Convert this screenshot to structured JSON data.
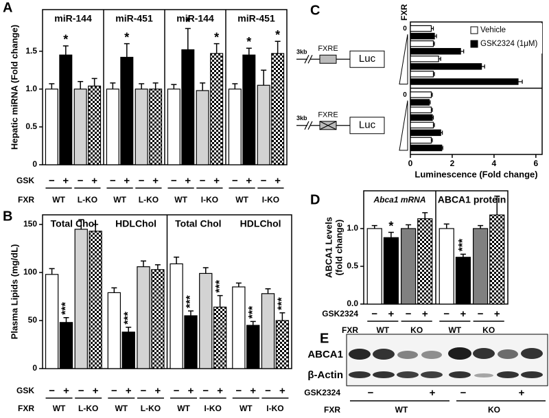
{
  "panel_labels": [
    "A",
    "B",
    "C",
    "D",
    "E"
  ],
  "chart_data": [
    {
      "type": "bar",
      "y_label": [
        "Hepatic miRNA (Fold change)"
      ],
      "ylim": [
        0,
        2.05
      ],
      "yticks": [
        0,
        0.5,
        {
          "value": 1,
          "label": "1.0"
        },
        1.5
      ],
      "treatment_label": "GSK",
      "genotype_label": "FXR",
      "treatment_values": [
        "−",
        "+"
      ],
      "colors": [
        "#ffffff",
        "#000000",
        "#d3d3d3",
        "checker"
      ],
      "groups": [
        {
          "title": "miR-144",
          "genotypes": [
            "WT",
            "L-KO"
          ],
          "values": [
            1.0,
            1.45,
            1.0,
            1.04
          ],
          "errors": [
            0.07,
            0.12,
            0.1,
            0.1
          ],
          "significance": [
            null,
            "*",
            null,
            null
          ]
        },
        {
          "title": "miR-451",
          "genotypes": [
            "WT",
            "L-KO"
          ],
          "values": [
            1.0,
            1.42,
            1.0,
            1.0
          ],
          "errors": [
            0.08,
            0.18,
            0.07,
            0.08
          ],
          "significance": [
            null,
            "*",
            null,
            null
          ]
        },
        {
          "title": "miR-144",
          "genotypes": [
            "WT",
            "I-KO"
          ],
          "values": [
            1.0,
            1.52,
            0.98,
            1.47
          ],
          "errors": [
            0.06,
            0.28,
            0.1,
            0.13
          ],
          "significance": [
            null,
            "*",
            null,
            "*"
          ]
        },
        {
          "title": "miR-451",
          "genotypes": [
            "WT",
            "I-KO"
          ],
          "values": [
            1.0,
            1.45,
            1.05,
            1.47
          ],
          "errors": [
            0.07,
            0.09,
            0.2,
            0.16
          ],
          "significance": [
            null,
            "*",
            null,
            "*"
          ]
        }
      ]
    },
    {
      "type": "bar",
      "y_label": [
        "Plasma Lipids (mg/dL)"
      ],
      "ylim": [
        0,
        160
      ],
      "yticks": [
        0,
        50,
        100,
        150
      ],
      "treatment_label": "GSK",
      "genotype_label": "FXR",
      "treatment_values": [
        "−",
        "+"
      ],
      "colors": [
        "#ffffff",
        "#000000",
        "#d3d3d3",
        "checker"
      ],
      "groups": [
        {
          "title": "Total Chol",
          "genotypes": [
            "WT",
            "L-KO"
          ],
          "values": [
            98,
            48,
            145,
            143
          ],
          "errors": [
            6,
            5,
            10,
            7
          ],
          "significance": [
            null,
            "***",
            null,
            null
          ]
        },
        {
          "title": "HDLChol",
          "genotypes": [
            "WT",
            "L-KO"
          ],
          "values": [
            79,
            38,
            106,
            103
          ],
          "errors": [
            5,
            5,
            6,
            5
          ],
          "significance": [
            null,
            "***",
            null,
            null
          ]
        },
        {
          "title": "Total Chol",
          "genotypes": [
            "WT",
            "I-KO"
          ],
          "values": [
            109,
            55,
            99,
            64
          ],
          "errors": [
            7,
            5,
            6,
            12
          ],
          "significance": [
            null,
            "***",
            null,
            "***"
          ]
        },
        {
          "title": "HDLChol",
          "genotypes": [
            "WT",
            "I-KO"
          ],
          "values": [
            85,
            45,
            78,
            50
          ],
          "errors": [
            4,
            4,
            5,
            8
          ],
          "significance": [
            null,
            "***",
            null,
            "***"
          ]
        }
      ]
    },
    {
      "type": "hbar",
      "x_label": "Luminescence (Fold change)",
      "xlim": [
        0,
        6.3
      ],
      "xticks": [
        0,
        2,
        4,
        6
      ],
      "dose_label": "FXR",
      "dose_zero": 0,
      "series": [
        {
          "name": "Vehicle",
          "color": "#ffffff"
        },
        {
          "name": "GSK2324 (1μM)",
          "color": "#000000"
        }
      ],
      "groups": [
        {
          "construct": [
            "3kb",
            "FXRE",
            "Luc"
          ],
          "fxre_mutated": false,
          "values": [
            [
              1.0,
              1.1,
              1.35,
              1.1
            ],
            [
              1.15,
              2.4,
              3.4,
              5.15
            ]
          ],
          "errors": [
            [
              0.1,
              0.05,
              0.1,
              0.05
            ],
            [
              0.1,
              0.15,
              0.15,
              0.2
            ]
          ]
        },
        {
          "construct": [
            "3kb",
            "FXRE",
            "Luc"
          ],
          "fxre_mutated": true,
          "values": [
            [
              1.0,
              1.0,
              1.1,
              1.0
            ],
            [
              0.9,
              1.05,
              1.45,
              1.5
            ]
          ],
          "errors": [
            [
              0.05,
              0.05,
              0.05,
              0.05
            ],
            [
              0.05,
              0.05,
              0.08,
              0.05
            ]
          ]
        }
      ]
    },
    {
      "type": "bar",
      "y_label": [
        "ABCA1 Levels",
        "(fold change)"
      ],
      "ylim": [
        0,
        1.5
      ],
      "yticks": [
        {
          "value": 0,
          "label": "0.0"
        },
        0.5,
        {
          "value": 1,
          "label": "1.0"
        }
      ],
      "treatment_label": "GSK2324",
      "genotype_label": "FXR",
      "treatment_values": [
        "−",
        "+"
      ],
      "colors": [
        "#ffffff",
        "#000000",
        "#808080",
        "checker"
      ],
      "groups": [
        {
          "title": "Abca1 mRNA",
          "title_italic": true,
          "genotypes": [
            "WT",
            "KO"
          ],
          "values": [
            1.0,
            0.88,
            1.0,
            1.13
          ],
          "errors": [
            0.04,
            0.07,
            0.05,
            0.08
          ],
          "significance": [
            null,
            "*",
            null,
            null
          ]
        },
        {
          "title": "ABCA1 protein",
          "title_italic": false,
          "genotypes": [
            "WT",
            "KO"
          ],
          "values": [
            1.0,
            0.62,
            1.0,
            1.18
          ],
          "errors": [
            0.06,
            0.04,
            0.04,
            0.25
          ],
          "significance": [
            null,
            "***",
            null,
            null
          ]
        }
      ]
    }
  ],
  "blot": {
    "rows": [
      "ABCA1",
      "β-Actin"
    ],
    "treatment_label": "GSK2324",
    "treatment_values": [
      "−",
      "+"
    ],
    "genotype_label": "FXR",
    "genotypes": [
      "WT",
      "KO"
    ]
  }
}
